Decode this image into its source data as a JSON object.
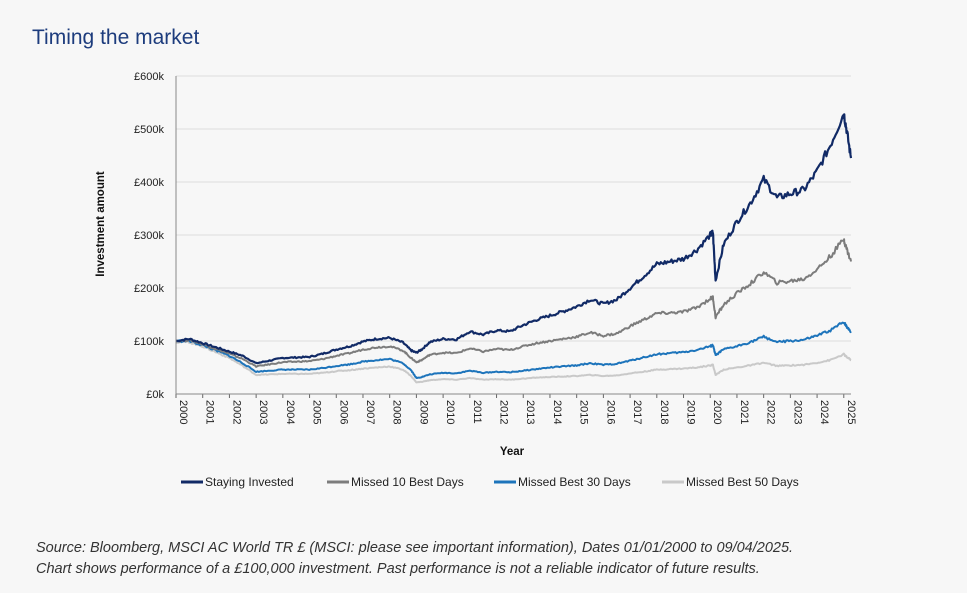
{
  "title": "Timing the market",
  "source": {
    "line1": "Source: Bloomberg, MSCI AC World TR £ (MSCI: please see important information), Dates 01/01/2000 to 09/04/2025.",
    "line2": "Chart shows performance of a £100,000 investment. Past performance is not a reliable indicator of future results."
  },
  "chart_data": {
    "type": "line",
    "xlabel": "Year",
    "ylabel": "Investment amount",
    "ylim": [
      0,
      600000
    ],
    "yticks": [
      0,
      100000,
      200000,
      300000,
      400000,
      500000,
      600000
    ],
    "ytick_labels": [
      "£0k",
      "£100k",
      "£200k",
      "£300k",
      "£400k",
      "£500k",
      "£600k"
    ],
    "xlim": [
      2000,
      2025.27
    ],
    "xtick_labels": [
      "2000",
      "2001",
      "2002",
      "2003",
      "2004",
      "2005",
      "2006",
      "2007",
      "2008",
      "2009",
      "2010",
      "2011",
      "2012",
      "2013",
      "2014",
      "2015",
      "2016",
      "2017",
      "2018",
      "2019",
      "2020",
      "2021",
      "2022",
      "2023",
      "2024",
      "2025"
    ],
    "grid": "horizontal",
    "legend_position": "bottom",
    "x": [
      2000,
      2000.5,
      2001,
      2001.5,
      2002,
      2002.5,
      2003,
      2003.5,
      2004,
      2004.5,
      2005,
      2005.5,
      2006,
      2006.5,
      2007,
      2007.5,
      2008,
      2008.5,
      2008.8,
      2009,
      2009.2,
      2009.5,
      2010,
      2010.5,
      2011,
      2011.5,
      2012,
      2012.5,
      2013,
      2013.5,
      2014,
      2014.5,
      2015,
      2015.5,
      2016,
      2016.5,
      2017,
      2017.5,
      2018,
      2018.5,
      2019,
      2019.5,
      2020,
      2020.1,
      2020.2,
      2020.5,
      2021,
      2021.5,
      2022,
      2022.5,
      2023,
      2023.5,
      2024,
      2024.5,
      2025,
      2025.1,
      2025.27
    ],
    "series": [
      {
        "name": "Staying Invested",
        "color": "#112a66",
        "values": [
          100000,
          104000,
          96000,
          88000,
          80000,
          72000,
          58000,
          63000,
          68000,
          69000,
          70000,
          76000,
          84000,
          90000,
          99000,
          104000,
          106000,
          97000,
          82000,
          78000,
          84000,
          98000,
          104000,
          103000,
          118000,
          112000,
          120000,
          118000,
          130000,
          140000,
          148000,
          156000,
          165000,
          178000,
          170000,
          178000,
          200000,
          222000,
          245000,
          250000,
          255000,
          272000,
          300000,
          305000,
          215000,
          282000,
          325000,
          360000,
          405000,
          370000,
          378000,
          385000,
          420000,
          470000,
          530000,
          500000,
          445000
        ]
      },
      {
        "name": "Missed 10 Best Days",
        "color": "#7c7c7c",
        "values": [
          100000,
          102000,
          94000,
          85000,
          76000,
          66000,
          52000,
          56000,
          60000,
          61000,
          62000,
          66000,
          72000,
          77000,
          84000,
          88000,
          90000,
          82000,
          68000,
          60000,
          64000,
          74000,
          78000,
          77000,
          86000,
          80000,
          85000,
          83000,
          90000,
          96000,
          100000,
          104000,
          108000,
          116000,
          110000,
          114000,
          128000,
          140000,
          152000,
          153000,
          155000,
          163000,
          180000,
          182000,
          145000,
          168000,
          190000,
          208000,
          230000,
          210000,
          213000,
          217000,
          235000,
          260000,
          292000,
          275000,
          250000
        ]
      },
      {
        "name": "Missed Best 30 Days",
        "color": "#1d74bb",
        "values": [
          100000,
          100000,
          92000,
          82000,
          72000,
          58000,
          42000,
          44000,
          46000,
          46000,
          46000,
          49000,
          53000,
          56000,
          61000,
          64000,
          66000,
          58000,
          45000,
          30000,
          32000,
          37000,
          40000,
          39000,
          44000,
          40000,
          42000,
          41000,
          44000,
          47000,
          50000,
          52000,
          54000,
          58000,
          55000,
          57000,
          63000,
          69000,
          75000,
          77000,
          79000,
          83000,
          90000,
          92000,
          73000,
          84000,
          90000,
          98000,
          108000,
          98000,
          100000,
          102000,
          110000,
          120000,
          136000,
          128000,
          118000
        ]
      },
      {
        "name": "Missed Best 50 Days",
        "color": "#c9c9c9",
        "values": [
          98000,
          98000,
          90000,
          79000,
          68000,
          53000,
          36000,
          37000,
          38000,
          38000,
          38000,
          40000,
          43000,
          45000,
          48000,
          50000,
          52000,
          46000,
          34000,
          22000,
          23000,
          26000,
          28000,
          27000,
          30000,
          27000,
          28000,
          27000,
          29000,
          31000,
          32000,
          33000,
          34000,
          36000,
          34000,
          35000,
          39000,
          42000,
          46000,
          47000,
          48000,
          50000,
          54000,
          55000,
          36000,
          46000,
          50000,
          54000,
          59000,
          53000,
          54000,
          55000,
          59000,
          64000,
          75000,
          70000,
          64000
        ]
      }
    ]
  }
}
